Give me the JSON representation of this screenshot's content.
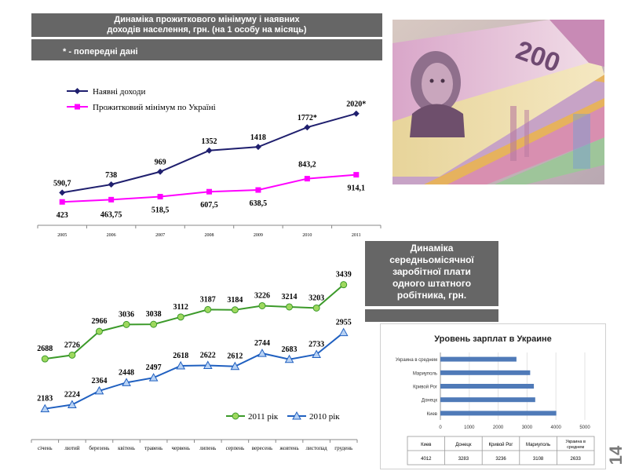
{
  "header": {
    "title_line1": "Динаміка прожиткового  мінімуму  і наявних",
    "title_line2": "доходів населення, грн. (на 1 особу на місяць)",
    "note": "* - попередні  дані"
  },
  "wage_title": {
    "lines": [
      "Динаміка",
      "середньомісячної",
      "заробітної плати",
      "одного штатного",
      "робітника, грн."
    ]
  },
  "slide_number": "14",
  "photo": {
    "icon": "banknotes-image",
    "banknote_value": "200"
  },
  "colors": {
    "navy": "#1f1f6e",
    "magenta": "#ff00ff",
    "green": "#3c9a2a",
    "green_fill": "#9ed85e",
    "blue": "#2060c0",
    "blue_fill": "#b8d2f4",
    "bar": "#4f7ab8",
    "banner": "#666666"
  },
  "chart_data": [
    {
      "type": "line",
      "title": "Динаміка прожиткового мінімуму і наявних доходів населення, грн.",
      "categories": [
        "2005",
        "2006",
        "2007",
        "2008",
        "2009",
        "2010",
        "2011"
      ],
      "series": [
        {
          "name": "Наявні доходи",
          "values": [
            590.7,
            738,
            969,
            1352,
            1418,
            1772,
            2020
          ],
          "labels": [
            "590,7",
            "738",
            "969",
            "1352",
            "1418",
            "1772*",
            "2020*"
          ]
        },
        {
          "name": "Прожитковий мінімум по Україні",
          "values": [
            423,
            463.75,
            518.5,
            607.5,
            638.5,
            843.2,
            914.1
          ],
          "labels": [
            "423",
            "463,75",
            "518,5",
            "607,5",
            "638,5",
            "843,2",
            "914,1"
          ]
        }
      ],
      "ylim": [
        0,
        2300
      ],
      "legend": "top-left"
    },
    {
      "type": "line",
      "title": "Динаміка середньомісячної заробітної плати одного штатного робітника, грн.",
      "categories": [
        "січень",
        "лютий",
        "березень",
        "квітень",
        "травень",
        "червень",
        "липень",
        "серпень",
        "вересень",
        "жовтень",
        "листопад",
        "грудень"
      ],
      "series": [
        {
          "name": "2011 рік",
          "values": [
            2688,
            2726,
            2966,
            3036,
            3038,
            3112,
            3187,
            3184,
            3226,
            3214,
            3203,
            3439
          ]
        },
        {
          "name": "2010 рік",
          "values": [
            2183,
            2224,
            2364,
            2448,
            2497,
            2618,
            2622,
            2612,
            2744,
            2683,
            2733,
            2955
          ]
        }
      ],
      "ylim": [
        1950,
        3500
      ],
      "legend": "bottom-right"
    },
    {
      "type": "bar",
      "orientation": "horizontal",
      "title": "Уровень зарплат в Украине",
      "categories": [
        "Украина в среднем",
        "Мариуполь",
        "Кривой Рог",
        "Донецк",
        "Киев"
      ],
      "values": [
        2633,
        3108,
        3236,
        3283,
        4012
      ],
      "xlim": [
        0,
        5000
      ],
      "xticks": [
        "0",
        "1000",
        "2000",
        "3000",
        "4000",
        "5000"
      ],
      "table": {
        "headers": [
          "Киев",
          "Донецк",
          "Кривой Рог",
          "Мариуполь",
          "Украина в среднем"
        ],
        "values": [
          "4012",
          "3283",
          "3236",
          "3108",
          "2633"
        ]
      }
    }
  ]
}
